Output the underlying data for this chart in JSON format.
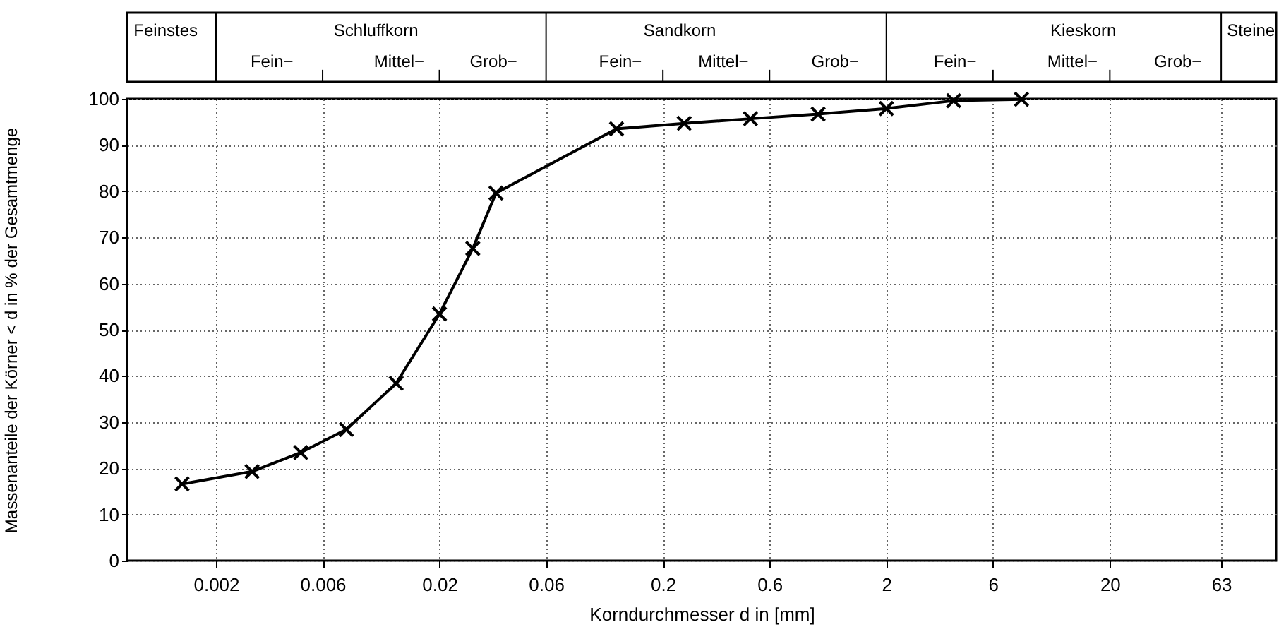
{
  "chart_data": {
    "type": "line",
    "xlabel": "Korndurchmesser d in [mm]",
    "ylabel": "Massenanteile der Körner < d in % der Gesamtmenge",
    "x": [
      0.00141,
      0.0029,
      0.00479,
      0.00766,
      0.0128,
      0.02,
      0.0282,
      0.0358,
      0.124,
      0.249,
      0.493,
      0.99,
      2.0,
      4.0,
      8.05
    ],
    "series": [
      {
        "color": "#000000",
        "values": [
          16.6,
          19.3,
          23.4,
          28.4,
          38.4,
          53.4,
          67.6,
          79.6,
          93.5,
          94.7,
          95.7,
          96.7,
          97.9,
          99.6,
          99.9
        ]
      }
    ],
    "log": "x",
    "xlim": [
      0.0008,
      111
    ],
    "xticks": [
      0.002,
      0.006,
      0.02,
      0.06,
      0.2,
      0.6,
      2,
      6,
      20,
      63
    ],
    "ylim": [
      0,
      100
    ],
    "yticks": [
      0,
      10,
      20,
      30,
      40,
      50,
      60,
      70,
      80,
      90,
      100
    ],
    "grid": true,
    "marker": "cross",
    "line_style": "solid",
    "annotations": [
      "Feinstes",
      "Schluffkorn",
      "Fein−",
      "Mittel−",
      "Grob−",
      "Sandkorn",
      "Fein−",
      "Mittel−",
      "Grob−",
      "Kieskorn",
      "Fein−",
      "Mittel−",
      "Grob−",
      "Steine"
    ]
  }
}
